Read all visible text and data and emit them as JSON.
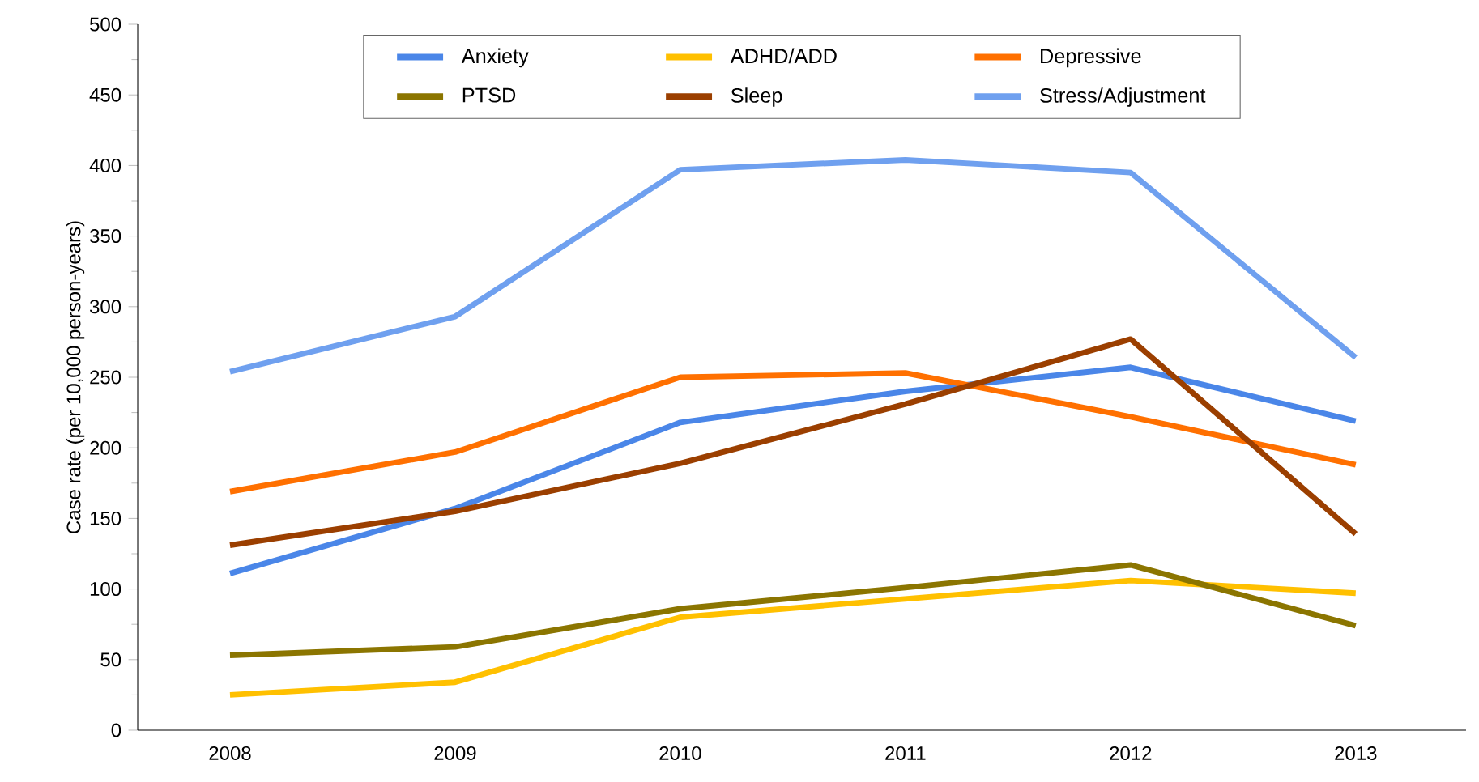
{
  "chart_data": {
    "type": "line",
    "ylabel": "Case rate (per 10,000 person-years)",
    "categories": [
      "2008",
      "2009",
      "2010",
      "2011",
      "2012",
      "2013"
    ],
    "ylim": [
      0,
      500
    ],
    "yticks": [
      0,
      50,
      100,
      150,
      200,
      250,
      300,
      350,
      400,
      450,
      500
    ],
    "legend": "top",
    "marker": "none",
    "line_style": "solid",
    "grid": false,
    "series": [
      {
        "name": "Anxiety",
        "color": "#4a86e8",
        "values": [
          111,
          157,
          218,
          240,
          257,
          219
        ]
      },
      {
        "name": "ADHD/ADD",
        "color": "#ffc000",
        "values": [
          25,
          34,
          80,
          93,
          106,
          97
        ]
      },
      {
        "name": "Depressive",
        "color": "#ff7000",
        "values": [
          169,
          197,
          250,
          253,
          222,
          188
        ]
      },
      {
        "name": "PTSD",
        "color": "#8b7500",
        "values": [
          53,
          59,
          86,
          101,
          117,
          74
        ]
      },
      {
        "name": "Sleep",
        "color": "#9b3f00",
        "values": [
          131,
          155,
          189,
          231,
          277,
          139
        ]
      },
      {
        "name": "Stress/Adjustment",
        "color": "#6fa0ef",
        "values": [
          254,
          293,
          397,
          404,
          395,
          264
        ]
      }
    ]
  }
}
